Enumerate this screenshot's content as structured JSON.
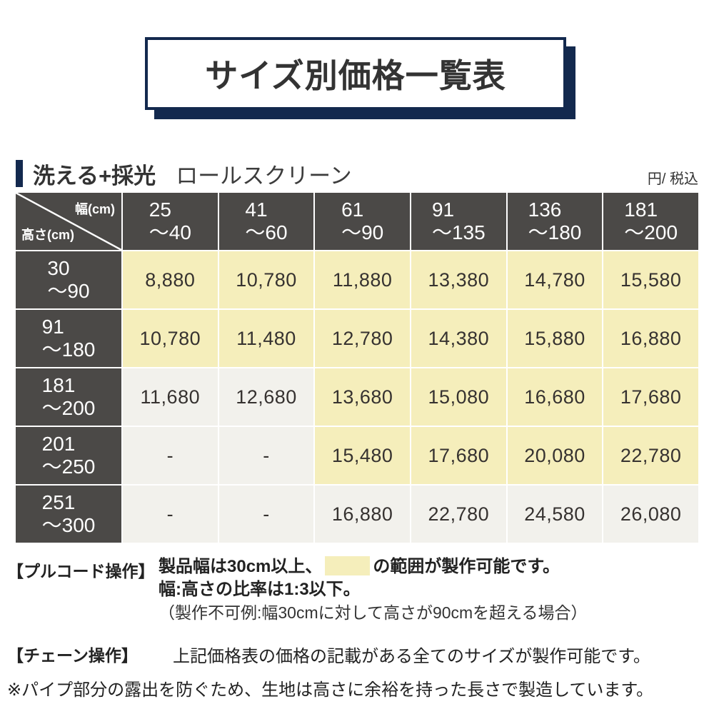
{
  "title": "サイズ別価格一覧表",
  "subtitle": {
    "product_type": "洗える+採光",
    "product_name": "ロールスクリーン",
    "unit": "円/ 税込"
  },
  "table": {
    "corner": {
      "width_label": "幅(cm)",
      "height_label": "高さ(cm)"
    },
    "col_headers": [
      {
        "line1": "25",
        "line2": "〜40"
      },
      {
        "line1": "41",
        "line2": "〜60"
      },
      {
        "line1": "61",
        "line2": "〜90"
      },
      {
        "line1": "91",
        "line2": "〜135"
      },
      {
        "line1": "136",
        "line2": "〜180"
      },
      {
        "line1": "181",
        "line2": "〜200"
      }
    ],
    "rows": [
      {
        "header": {
          "line1": "30",
          "line2": "〜90"
        },
        "cells": [
          {
            "value": "8,880",
            "highlight": true
          },
          {
            "value": "10,780",
            "highlight": true
          },
          {
            "value": "11,880",
            "highlight": true
          },
          {
            "value": "13,380",
            "highlight": true
          },
          {
            "value": "14,780",
            "highlight": true
          },
          {
            "value": "15,580",
            "highlight": true
          }
        ]
      },
      {
        "header": {
          "line1": "91",
          "line2": "〜180"
        },
        "cells": [
          {
            "value": "10,780",
            "highlight": true
          },
          {
            "value": "11,480",
            "highlight": true
          },
          {
            "value": "12,780",
            "highlight": true
          },
          {
            "value": "14,380",
            "highlight": true
          },
          {
            "value": "15,880",
            "highlight": true
          },
          {
            "value": "16,880",
            "highlight": true
          }
        ]
      },
      {
        "header": {
          "line1": "181",
          "line2": "〜200"
        },
        "cells": [
          {
            "value": "11,680",
            "highlight": false
          },
          {
            "value": "12,680",
            "highlight": false
          },
          {
            "value": "13,680",
            "highlight": true
          },
          {
            "value": "15,080",
            "highlight": true
          },
          {
            "value": "16,680",
            "highlight": true
          },
          {
            "value": "17,680",
            "highlight": true
          }
        ]
      },
      {
        "header": {
          "line1": "201",
          "line2": "〜250"
        },
        "cells": [
          {
            "value": "-",
            "highlight": false
          },
          {
            "value": "-",
            "highlight": false
          },
          {
            "value": "15,480",
            "highlight": true
          },
          {
            "value": "17,680",
            "highlight": true
          },
          {
            "value": "20,080",
            "highlight": true
          },
          {
            "value": "22,780",
            "highlight": true
          }
        ]
      },
      {
        "header": {
          "line1": "251",
          "line2": "〜300"
        },
        "cells": [
          {
            "value": "-",
            "highlight": false
          },
          {
            "value": "-",
            "highlight": false
          },
          {
            "value": "16,880",
            "highlight": false
          },
          {
            "value": "22,780",
            "highlight": false
          },
          {
            "value": "24,580",
            "highlight": false
          },
          {
            "value": "26,080",
            "highlight": false
          }
        ]
      }
    ]
  },
  "notes": {
    "pull_cord": {
      "label": "【プルコード操作】",
      "line1_before": "製品幅は30cm以上、",
      "line1_after": "の範囲が製作可能です。",
      "line2": "幅:高さの比率は1:3以下。",
      "line3": "（製作不可例:幅30cmに対して高さが90cmを超える場合）"
    },
    "chain": {
      "label": "【チェーン操作】",
      "text": "上記価格表の価格の記載がある全てのサイズが製作可能です。"
    },
    "footnote": "※パイプ部分の露出を防ぐため、生地は高さに余裕を持った長さで製造しています。"
  },
  "colors": {
    "accent_navy": "#13294e",
    "header_gray": "#4b4947",
    "highlight_yellow": "#f5eebb",
    "cell_offwhite": "#f2f1ec"
  }
}
